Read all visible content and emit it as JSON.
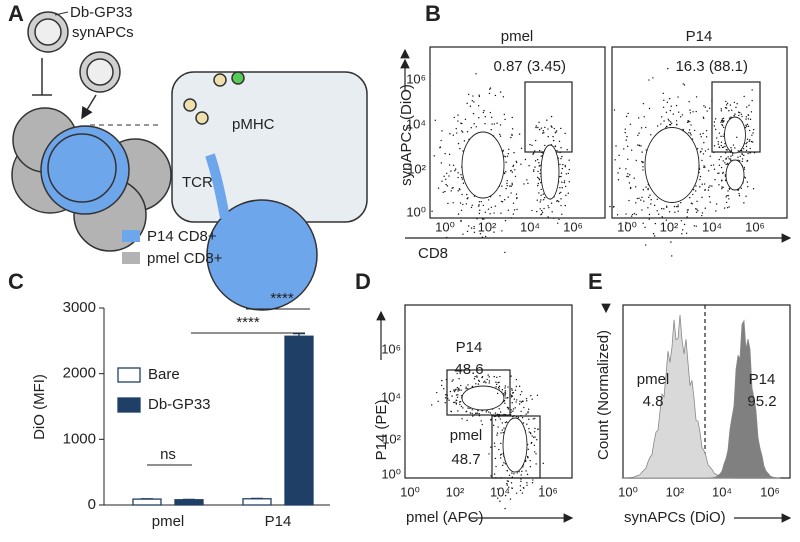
{
  "figure": {
    "a": {
      "letter": "A",
      "synapc_label": [
        "Db-GP33",
        "synAPCs"
      ],
      "pmhc": "pMHC",
      "tcr": "TCR",
      "legend": [
        {
          "name": "P14 CD8+",
          "color": "#6ea6ec"
        },
        {
          "name": "pmel CD8+",
          "color": "#b3b3b3"
        }
      ]
    },
    "b": {
      "letter": "B",
      "ylabel": "synAPCs (DiO)",
      "xlabel": "CD8",
      "yticks": [
        "10⁰",
        "10²",
        "10⁴",
        "10⁶"
      ],
      "plots": [
        {
          "title": "pmel",
          "gate": "0.87 (3.45)",
          "xticks": [
            "10⁰",
            "10²",
            "10⁴",
            "10⁶"
          ]
        },
        {
          "title": "P14",
          "gate": "16.3 (88.1)",
          "xticks": [
            "10⁰",
            "10²",
            "10⁴",
            "10⁶"
          ]
        }
      ]
    },
    "c": {
      "letter": "C"
    },
    "d": {
      "letter": "D",
      "ylabel": "P14 (PE)",
      "xlabel": "pmel (APC)",
      "xticks": [
        "10⁰",
        "10²",
        "10⁴",
        "10⁶"
      ],
      "yticks": [
        "10⁰",
        "10²",
        "10⁴",
        "10⁶"
      ],
      "gates": [
        {
          "name": "P14",
          "value": 48.6
        },
        {
          "name": "pmel",
          "value": 48.7
        }
      ]
    },
    "e": {
      "letter": "E",
      "ylabel": "Count (Normalized)",
      "xlabel": "synAPCs (DiO)",
      "xticks": [
        "10⁰",
        "10²",
        "10⁴",
        "10⁶"
      ],
      "gates": [
        {
          "name": "pmel",
          "value": 4.8
        },
        {
          "name": "P14",
          "value": 95.2
        }
      ]
    }
  },
  "chart_data": {
    "type": "bar",
    "ylabel": "DiO (MFI)",
    "categories": [
      "pmel",
      "P14"
    ],
    "series": [
      {
        "name": "Bare",
        "color": "#ffffff",
        "values": [
          90,
          95
        ],
        "errors": [
          5,
          5
        ]
      },
      {
        "name": "Db-GP33",
        "color": "#1f3f66",
        "values": [
          80,
          2570
        ],
        "errors": [
          5,
          40
        ]
      }
    ],
    "ylim": [
      0,
      3000
    ],
    "yticks": [
      0,
      1000,
      2000,
      3000
    ],
    "annotations": [
      "ns",
      "****",
      "****"
    ],
    "legend": "center-left"
  }
}
